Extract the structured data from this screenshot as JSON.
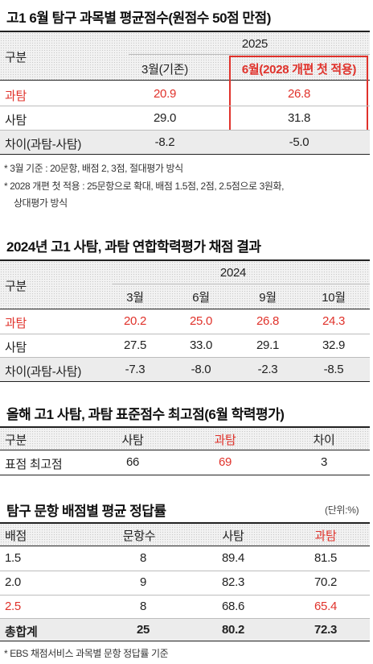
{
  "section1": {
    "title": "고1 6월 탐구 과목별 평균점수(원점수 50점 만점)",
    "year": "2025",
    "row_label_header": "구분",
    "col_a": "3월(기존)",
    "col_b": "6월(2028 개편 첫 적용)",
    "rows": [
      {
        "label": "과탐",
        "a": "20.9",
        "b": "26.8"
      },
      {
        "label": "사탐",
        "a": "29.0",
        "b": "31.8"
      },
      {
        "label": "차이(과탐-사탐)",
        "a": "-8.2",
        "b": "-5.0"
      }
    ],
    "notes": [
      "* 3월 기준 : 20문항, 배점 2, 3점, 절대평가 방식",
      "* 2028 개편 첫 적용 : 25문항으로 확대, 배점 1.5점, 2점, 2.5점으로 3원화,",
      "상대평가 방식"
    ],
    "accent_color": "#e0322b"
  },
  "section2": {
    "title": "2024년 고1 사탐, 과탐 연합학력평가 채점 결과",
    "year": "2024",
    "row_label_header": "구분",
    "columns": [
      "3월",
      "6월",
      "9월",
      "10월"
    ],
    "rows": [
      {
        "label": "과탐",
        "values": [
          "20.2",
          "25.0",
          "26.8",
          "24.3"
        ]
      },
      {
        "label": "사탐",
        "values": [
          "27.5",
          "33.0",
          "29.1",
          "32.9"
        ]
      },
      {
        "label": "차이(과탐-사탐)",
        "values": [
          "-7.3",
          "-8.0",
          "-2.3",
          "-8.5"
        ]
      }
    ]
  },
  "section3": {
    "title": "올해 고1 사탐, 과탐 표준점수 최고점(6월 학력평가)",
    "headers": [
      "구분",
      "사탐",
      "과탐",
      "차이"
    ],
    "row": {
      "label": "표점 최고점",
      "values": [
        "66",
        "69",
        "3"
      ]
    }
  },
  "section4": {
    "title": "탐구 문항 배점별 평균 정답률",
    "unit": "(단위:%)",
    "headers": [
      "배점",
      "문항수",
      "사탐",
      "과탐"
    ],
    "rows": [
      {
        "label": "1.5",
        "values": [
          "8",
          "89.4",
          "81.5"
        ]
      },
      {
        "label": "2.0",
        "values": [
          "9",
          "82.3",
          "70.2"
        ]
      },
      {
        "label": "2.5",
        "values": [
          "8",
          "68.6",
          "65.4"
        ]
      }
    ],
    "total": {
      "label": "총합계",
      "values": [
        "25",
        "80.2",
        "72.3"
      ]
    },
    "footnote": "* EBS 채점서비스 과목별 문항 정답률 기준"
  }
}
